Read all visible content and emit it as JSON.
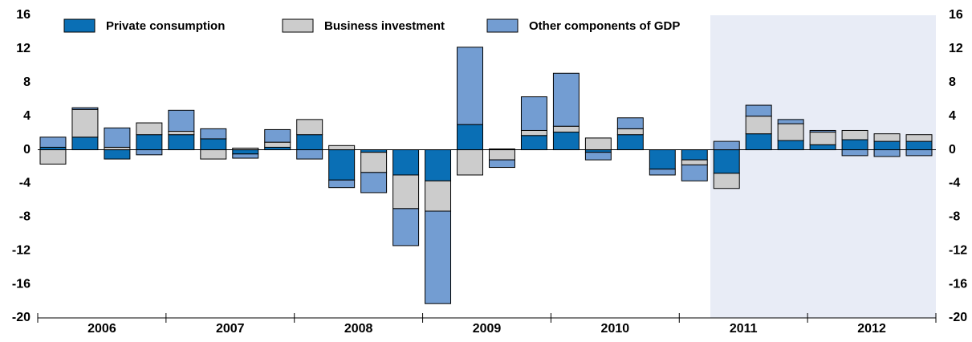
{
  "chart_data": {
    "type": "stacked_bar",
    "categories": [
      null,
      null,
      null,
      null,
      null,
      null,
      null,
      null,
      null,
      null,
      null,
      null,
      null,
      null,
      null,
      null,
      null,
      null,
      null,
      null,
      null,
      null,
      null,
      null,
      null,
      null,
      null,
      null
    ],
    "groups": [
      "2006",
      "2007",
      "2008",
      "2009",
      "2010",
      "2011",
      "2012"
    ],
    "series": [
      {
        "name": "Private consumption",
        "color": "#0a6fb5",
        "values": [
          0.3,
          1.5,
          -1.1,
          1.8,
          1.8,
          1.3,
          -0.5,
          0.3,
          1.8,
          -3.6,
          -0.3,
          -3.0,
          -3.7,
          3.0,
          0.1,
          1.7,
          2.1,
          -0.3,
          1.8,
          -2.3,
          -1.2,
          -2.8,
          1.9,
          1.1,
          0.6,
          1.2,
          1.0,
          1.0
        ]
      },
      {
        "name": "Business investment",
        "color": "#cccccc",
        "values": [
          -1.7,
          3.3,
          0.3,
          1.4,
          0.4,
          -1.1,
          0.2,
          0.6,
          1.8,
          0.5,
          -2.4,
          -4.0,
          -3.6,
          -3.0,
          -1.2,
          0.6,
          0.7,
          1.4,
          0.7,
          0,
          -0.6,
          -1.8,
          2.1,
          2.0,
          1.5,
          1.1,
          0.9,
          0.8
        ]
      },
      {
        "name": "Other components of GDP",
        "color": "#739dd2",
        "values": [
          1.2,
          0.2,
          2.3,
          -0.6,
          2.5,
          1.2,
          -0.5,
          1.5,
          -1.1,
          -0.9,
          -2.4,
          -4.4,
          -11.0,
          9.2,
          -0.9,
          4.0,
          6.3,
          -0.9,
          1.3,
          -0.7,
          -1.9,
          1.0,
          1.3,
          0.5,
          0.2,
          -0.7,
          -0.8,
          -0.7
        ]
      }
    ],
    "ylim": [
      -20,
      16
    ],
    "yticks": [
      -20,
      -16,
      -12,
      -8,
      -4,
      0,
      4,
      8,
      12,
      16
    ]
  }
}
